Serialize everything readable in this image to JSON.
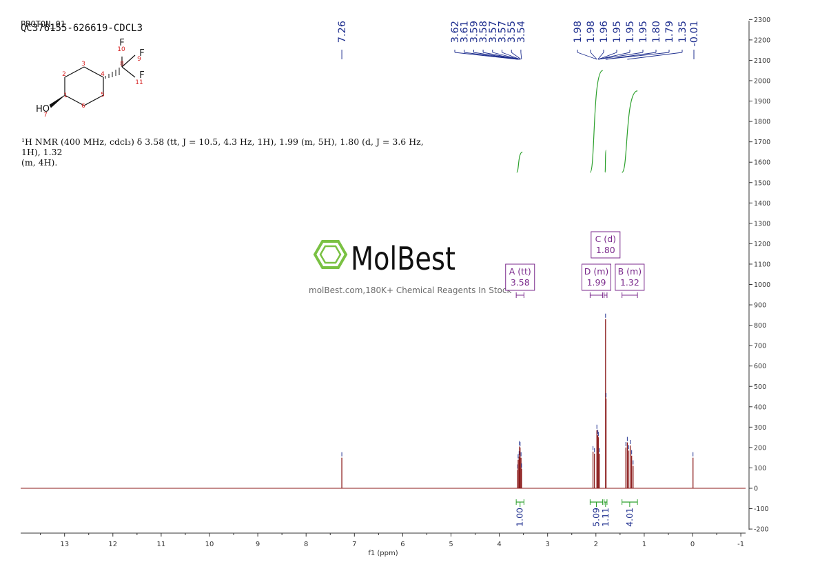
{
  "header": {
    "title_back": "PROTON_01",
    "title": "QC376155-626619-CDCL3"
  },
  "description": {
    "line1": "¹H NMR (400 MHz, cdcl₃) δ 3.58 (tt, J = 10.5, 4.3 Hz, 1H), 1.99 (m, 5H), 1.80 (d, J = 3.6 Hz, 1H), 1.32",
    "line2": "(m, 4H)."
  },
  "watermark": {
    "brand": "MolBest",
    "tagline": "molBest.com,180K+ Chemical Reagents In Stock"
  },
  "structure": {
    "atom_labels": [
      "1",
      "2",
      "3",
      "4",
      "5",
      "6",
      "7",
      "8",
      "9",
      "10",
      "11"
    ],
    "symbols": {
      "F": "F",
      "HO": "HO"
    }
  },
  "peak_labels": {
    "group1": [
      "3.62",
      "3.61",
      "3.59",
      "3.58",
      "3.57",
      "3.57",
      "3.55",
      "3.54"
    ],
    "group2": [
      "1.98",
      "1.98",
      "1.96",
      "1.95",
      "1.95",
      "1.95",
      "1.80",
      "1.79",
      "1.35"
    ],
    "solvent": "7.26",
    "tms": "-0.01"
  },
  "chart_data": {
    "type": "line",
    "xlabel": "f1 (ppm)",
    "ylabel": "",
    "xlim": [
      14,
      -1
    ],
    "ylim": [
      -200,
      2300
    ],
    "x_ticks": [
      13,
      12,
      11,
      10,
      9,
      8,
      7,
      6,
      5,
      4,
      3,
      2,
      1,
      0,
      -1
    ],
    "y_ticks": [
      -200,
      -100,
      0,
      100,
      200,
      300,
      400,
      500,
      600,
      700,
      800,
      900,
      1000,
      1100,
      1200,
      1300,
      1400,
      1500,
      1600,
      1700,
      1800,
      1900,
      2000,
      2100,
      2200,
      2300
    ],
    "peaks": [
      {
        "ppm": 7.26,
        "intensity": 150
      },
      {
        "ppm": 3.62,
        "intensity": 90
      },
      {
        "ppm": 3.61,
        "intensity": 140
      },
      {
        "ppm": 3.59,
        "intensity": 155
      },
      {
        "ppm": 3.58,
        "intensity": 205
      },
      {
        "ppm": 3.57,
        "intensity": 200
      },
      {
        "ppm": 3.55,
        "intensity": 150
      },
      {
        "ppm": 3.54,
        "intensity": 95
      },
      {
        "ppm": 2.06,
        "intensity": 180
      },
      {
        "ppm": 2.03,
        "intensity": 170
      },
      {
        "ppm": 1.98,
        "intensity": 285
      },
      {
        "ppm": 1.96,
        "intensity": 260
      },
      {
        "ppm": 1.95,
        "intensity": 250
      },
      {
        "ppm": 1.93,
        "intensity": 170
      },
      {
        "ppm": 1.8,
        "intensity": 830
      },
      {
        "ppm": 1.79,
        "intensity": 440
      },
      {
        "ppm": 1.38,
        "intensity": 200
      },
      {
        "ppm": 1.35,
        "intensity": 225
      },
      {
        "ppm": 1.32,
        "intensity": 185
      },
      {
        "ppm": 1.29,
        "intensity": 210
      },
      {
        "ppm": 1.26,
        "intensity": 160
      },
      {
        "ppm": 1.23,
        "intensity": 110
      },
      {
        "ppm": -0.01,
        "intensity": 150
      }
    ],
    "multiplets": [
      {
        "name": "A (tt)",
        "value": "3.58",
        "from": 3.65,
        "to": 3.49
      },
      {
        "name": "D (m)",
        "value": "1.99",
        "from": 2.12,
        "to": 1.86
      },
      {
        "name": "C (d)",
        "value": "1.80",
        "from": 1.83,
        "to": 1.77
      },
      {
        "name": "B (m)",
        "value": "1.32",
        "from": 1.46,
        "to": 1.14
      }
    ],
    "integrals": [
      {
        "value": "1.00",
        "from": 3.65,
        "to": 3.49
      },
      {
        "value": "5.09",
        "from": 2.12,
        "to": 1.86
      },
      {
        "value": "1.11",
        "from": 1.83,
        "to": 1.77
      },
      {
        "value": "4.01",
        "from": 1.46,
        "to": 1.14
      }
    ],
    "integral_curves": [
      {
        "from": 3.64,
        "to": 3.52,
        "y_start": 1550,
        "y_end": 1650
      },
      {
        "from": 2.12,
        "to": 1.86,
        "y_start": 1550,
        "y_end": 2050
      },
      {
        "from": 1.81,
        "to": 1.79,
        "y_start": 1550,
        "y_end": 1660
      },
      {
        "from": 1.46,
        "to": 1.14,
        "y_start": 1550,
        "y_end": 1950
      }
    ],
    "colors": {
      "spectrum": "#8b1a1a",
      "integral": "#2ca02c",
      "annotation": "#1f2f8f",
      "multiplet": "#7b2a8c",
      "watermark": "#7ac143"
    }
  }
}
